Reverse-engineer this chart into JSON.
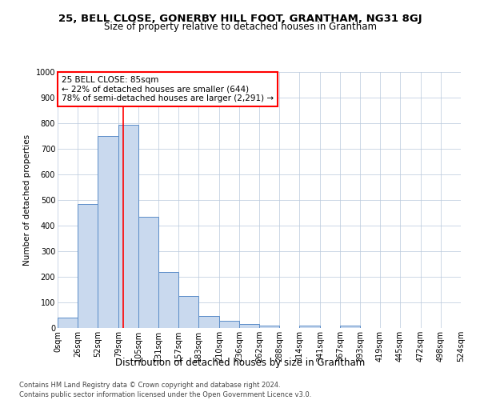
{
  "title": "25, BELL CLOSE, GONERBY HILL FOOT, GRANTHAM, NG31 8GJ",
  "subtitle": "Size of property relative to detached houses in Grantham",
  "xlabel": "Distribution of detached houses by size in Grantham",
  "ylabel": "Number of detached properties",
  "bar_color": "#c9d9ee",
  "bar_edge_color": "#5b8dc8",
  "grid_color": "#b8c8dc",
  "annotation_line_color": "red",
  "property_sqm": 85,
  "annotation_text_line1": "25 BELL CLOSE: 85sqm",
  "annotation_text_line2": "← 22% of detached houses are smaller (644)",
  "annotation_text_line3": "78% of semi-detached houses are larger (2,291) →",
  "footer1": "Contains HM Land Registry data © Crown copyright and database right 2024.",
  "footer2": "Contains public sector information licensed under the Open Government Licence v3.0.",
  "bins": [
    0,
    26,
    52,
    79,
    105,
    131,
    157,
    183,
    210,
    236,
    262,
    288,
    314,
    341,
    367,
    393,
    419,
    445,
    472,
    498,
    524
  ],
  "counts": [
    40,
    485,
    750,
    795,
    435,
    220,
    125,
    48,
    28,
    15,
    10,
    0,
    8,
    0,
    8,
    0,
    0,
    0,
    0,
    0
  ],
  "ylim": [
    0,
    1000
  ],
  "yticks": [
    0,
    100,
    200,
    300,
    400,
    500,
    600,
    700,
    800,
    900,
    1000
  ],
  "title_fontsize": 9.5,
  "subtitle_fontsize": 8.5,
  "xlabel_fontsize": 8.5,
  "ylabel_fontsize": 7.5,
  "tick_fontsize": 7,
  "annotation_fontsize": 7.5,
  "footer_fontsize": 6
}
